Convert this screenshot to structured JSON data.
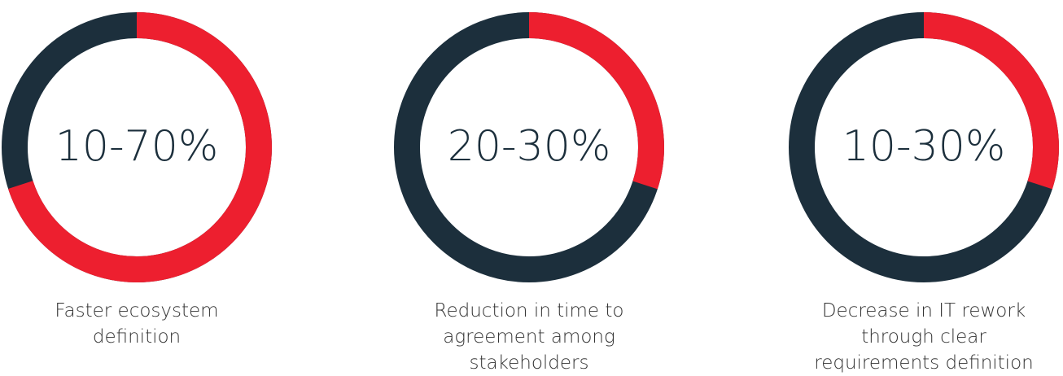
{
  "chart_data": {
    "type": "donut",
    "categories": [
      "Faster ecosystem definition",
      "Reduction in time to agreement among stakeholders",
      "Decrease in IT rework through clear requirements definition"
    ],
    "values": [
      70,
      30,
      30
    ],
    "value_labels": [
      "10-70%",
      "20-30%",
      "10-30%"
    ],
    "color": "#ed1f2f",
    "track_color": "#1c2f3c"
  }
}
